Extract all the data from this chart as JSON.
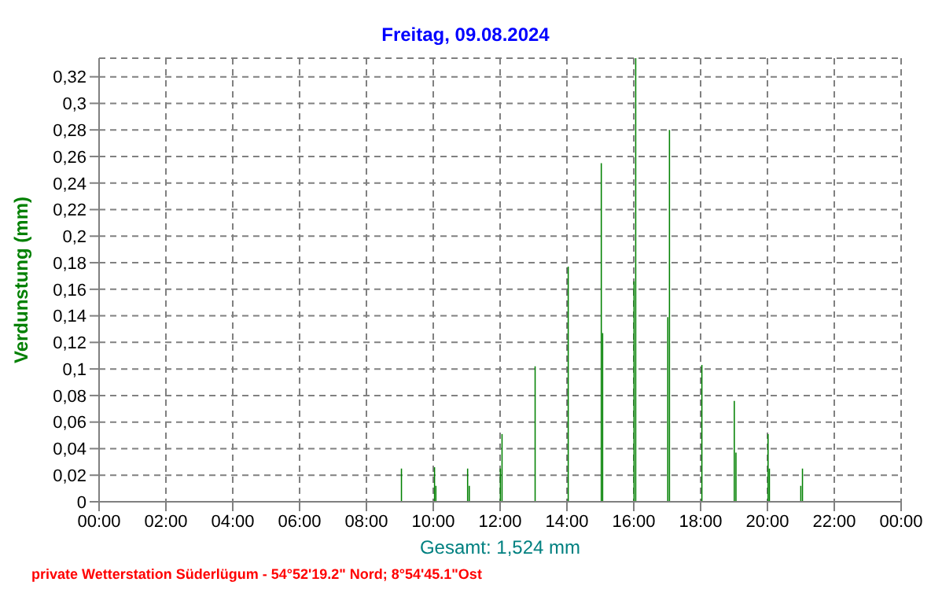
{
  "chart_data": {
    "type": "bar",
    "title": "Freitag, 09.08.2024",
    "xlabel": "Gesamt: 1,524 mm",
    "ylabel": "Verdunstung  (mm)",
    "annotations": [
      "private Wetterstation Süderlügum  -  54°52'19.2\" Nord; 8°54'45.1\"Ost"
    ],
    "x": [
      9.05,
      10.04,
      10.08,
      11.03,
      11.08,
      12.01,
      12.06,
      13.05,
      14.04,
      15.03,
      15.07,
      16.01,
      16.06,
      17.02,
      17.07,
      18.04,
      19.01,
      19.06,
      20.02,
      20.06,
      21.0,
      21.05
    ],
    "values": [
      0.025,
      0.026,
      0.012,
      0.025,
      0.012,
      0.025,
      0.051,
      0.102,
      0.177,
      0.255,
      0.127,
      0.166,
      0.334,
      0.139,
      0.28,
      0.103,
      0.076,
      0.037,
      0.051,
      0.025,
      0.012,
      0.025
    ],
    "color": "#008000",
    "xlim": [
      0,
      24
    ],
    "xticks": [
      {
        "value": 0,
        "label": "00:00"
      },
      {
        "value": 2,
        "label": "02:00"
      },
      {
        "value": 4,
        "label": "04:00"
      },
      {
        "value": 6,
        "label": "06:00"
      },
      {
        "value": 8,
        "label": "08:00"
      },
      {
        "value": 10,
        "label": "10:00"
      },
      {
        "value": 12,
        "label": "12:00"
      },
      {
        "value": 14,
        "label": "14:00"
      },
      {
        "value": 16,
        "label": "16:00"
      },
      {
        "value": 18,
        "label": "18:00"
      },
      {
        "value": 20,
        "label": "20:00"
      },
      {
        "value": 22,
        "label": "22:00"
      },
      {
        "value": 24,
        "label": "00:00"
      }
    ],
    "ylim": [
      0,
      0.334
    ],
    "yticks": [
      0,
      {
        "value": 0.02,
        "label": "0,02"
      },
      {
        "value": 0.04,
        "label": "0,04"
      },
      {
        "value": 0.06,
        "label": "0,06"
      },
      {
        "value": 0.08,
        "label": "0,08"
      },
      {
        "value": 0.1,
        "label": "0,1"
      },
      {
        "value": 0.12,
        "label": "0,12"
      },
      {
        "value": 0.14,
        "label": "0,14"
      },
      {
        "value": 0.16,
        "label": "0,16"
      },
      {
        "value": 0.18,
        "label": "0,18"
      },
      {
        "value": 0.2,
        "label": "0,2"
      },
      {
        "value": 0.22,
        "label": "0,22"
      },
      {
        "value": 0.24,
        "label": "0,24"
      },
      {
        "value": 0.26,
        "label": "0,26"
      },
      {
        "value": 0.28,
        "label": "0,28"
      },
      {
        "value": 0.3,
        "label": "0,3"
      },
      {
        "value": 0.32,
        "label": "0,32"
      }
    ],
    "grid": true,
    "legend": false
  }
}
